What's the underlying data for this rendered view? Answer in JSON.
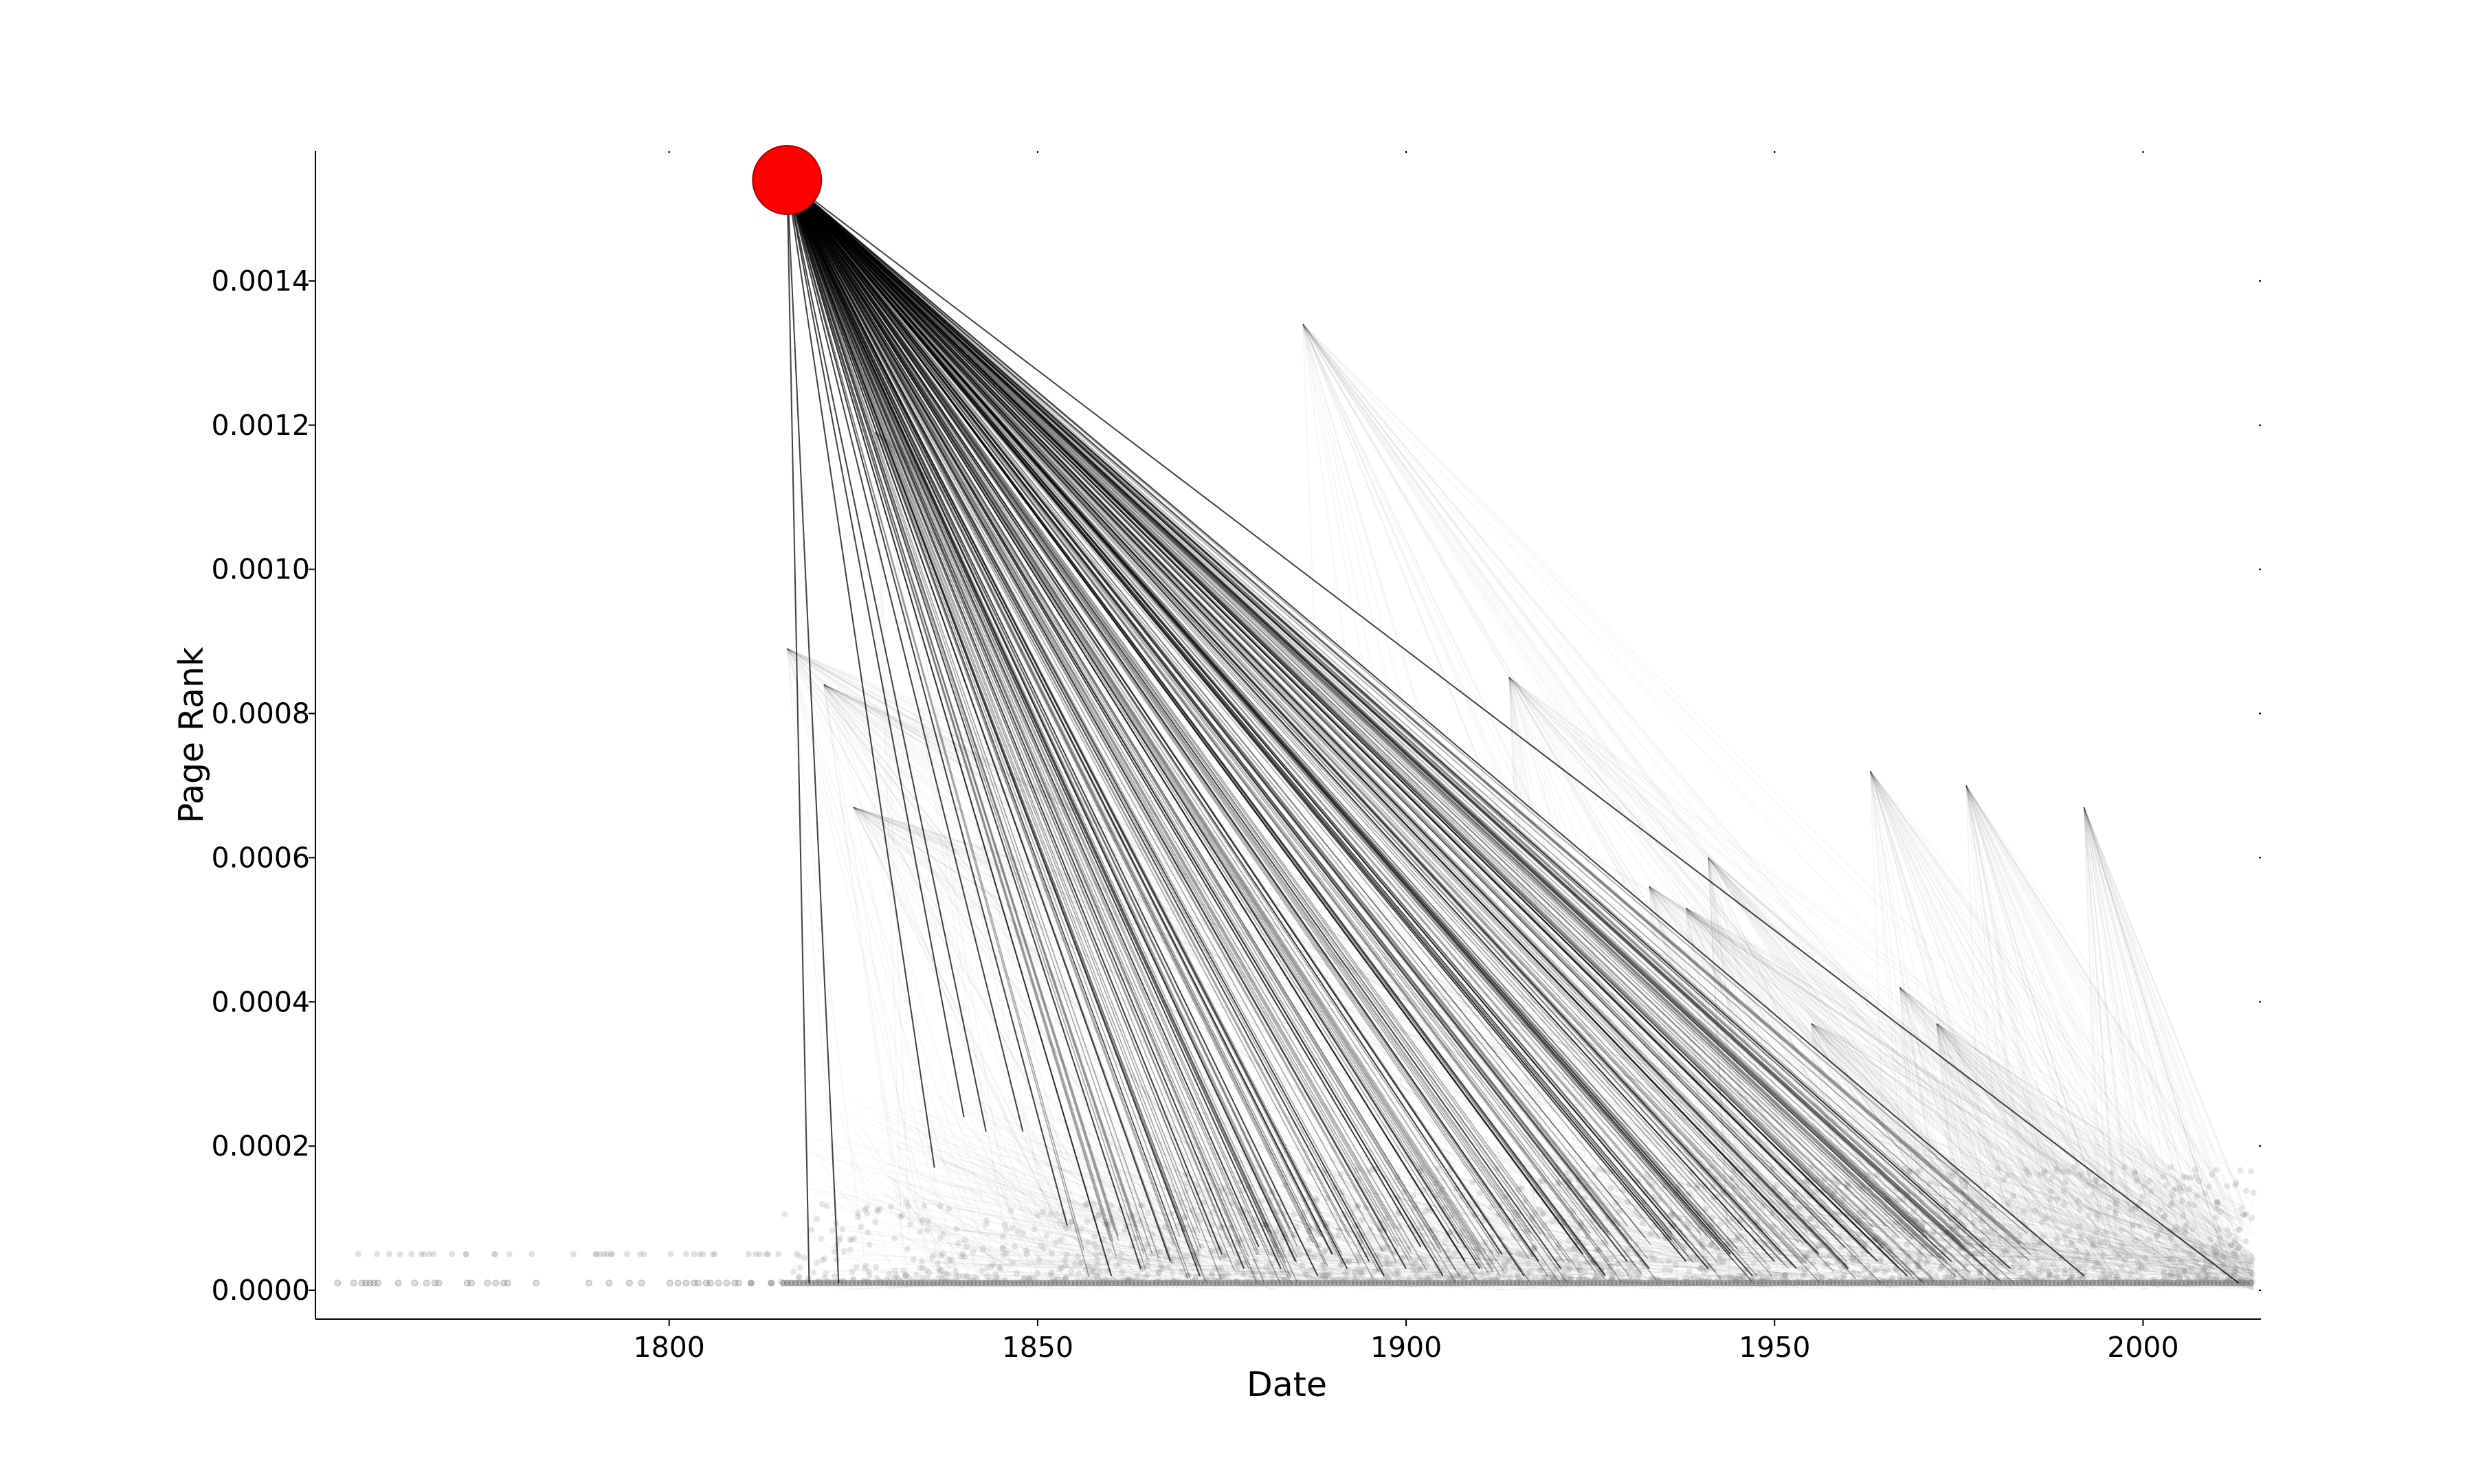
{
  "chart_data": {
    "type": "scatter",
    "xlabel": "Date",
    "ylabel": "Page Rank",
    "xlim": [
      1752,
      2016
    ],
    "ylim": [
      -4e-05,
      0.00158
    ],
    "xticks": [
      1800,
      1850,
      1900,
      1950,
      2000
    ],
    "yticks": [
      0.0,
      0.0002,
      0.0004,
      0.0006,
      0.0008,
      0.001,
      0.0012,
      0.0014
    ],
    "ytick_labels": [
      "0.0000",
      "0.0002",
      "0.0004",
      "0.0006",
      "0.0008",
      "0.0010",
      "0.0012",
      "0.0014"
    ],
    "highlight_node": {
      "x": 1816,
      "y": 0.00154,
      "color": "#ff0000"
    },
    "edges_from_highlight": [
      {
        "x": 1819,
        "y": 1e-05
      },
      {
        "x": 1823,
        "y": 1e-05
      },
      {
        "x": 1836,
        "y": 0.00017
      },
      {
        "x": 1840,
        "y": 0.00024
      },
      {
        "x": 1843,
        "y": 0.00022
      },
      {
        "x": 1848,
        "y": 0.00022
      },
      {
        "x": 1854,
        "y": 9e-05
      },
      {
        "x": 1860,
        "y": 2e-05
      },
      {
        "x": 1864,
        "y": 3e-05
      },
      {
        "x": 1868,
        "y": 4e-05
      },
      {
        "x": 1872,
        "y": 2e-05
      },
      {
        "x": 1875,
        "y": 5e-05
      },
      {
        "x": 1878,
        "y": 3e-05
      },
      {
        "x": 1880,
        "y": 6e-05
      },
      {
        "x": 1883,
        "y": 3e-05
      },
      {
        "x": 1885,
        "y": 4e-05
      },
      {
        "x": 1888,
        "y": 2e-05
      },
      {
        "x": 1890,
        "y": 5e-05
      },
      {
        "x": 1892,
        "y": 3e-05
      },
      {
        "x": 1895,
        "y": 4e-05
      },
      {
        "x": 1897,
        "y": 2e-05
      },
      {
        "x": 1900,
        "y": 3e-05
      },
      {
        "x": 1902,
        "y": 6e-05
      },
      {
        "x": 1905,
        "y": 2e-05
      },
      {
        "x": 1908,
        "y": 4e-05
      },
      {
        "x": 1910,
        "y": 3e-05
      },
      {
        "x": 1913,
        "y": 5e-05
      },
      {
        "x": 1916,
        "y": 2e-05
      },
      {
        "x": 1918,
        "y": 4e-05
      },
      {
        "x": 1921,
        "y": 3e-05
      },
      {
        "x": 1924,
        "y": 5e-05
      },
      {
        "x": 1927,
        "y": 2e-05
      },
      {
        "x": 1930,
        "y": 4e-05
      },
      {
        "x": 1933,
        "y": 3e-05
      },
      {
        "x": 1936,
        "y": 7e-05
      },
      {
        "x": 1938,
        "y": 4e-05
      },
      {
        "x": 1941,
        "y": 3e-05
      },
      {
        "x": 1944,
        "y": 5e-05
      },
      {
        "x": 1947,
        "y": 2e-05
      },
      {
        "x": 1950,
        "y": 4e-05
      },
      {
        "x": 1953,
        "y": 3e-05
      },
      {
        "x": 1956,
        "y": 5e-05
      },
      {
        "x": 1960,
        "y": 3e-05
      },
      {
        "x": 1964,
        "y": 4e-05
      },
      {
        "x": 1968,
        "y": 2e-05
      },
      {
        "x": 1974,
        "y": 4e-05
      },
      {
        "x": 1982,
        "y": 3e-05
      },
      {
        "x": 1992,
        "y": 2e-05
      },
      {
        "x": 2013,
        "y": 1e-05
      }
    ],
    "secondary_hubs": [
      {
        "x": 1886,
        "y": 0.00134
      },
      {
        "x": 1828,
        "y": 0.00119
      },
      {
        "x": 1816,
        "y": 0.00089
      },
      {
        "x": 1821,
        "y": 0.00084
      },
      {
        "x": 1914,
        "y": 0.00085
      },
      {
        "x": 1825,
        "y": 0.00067
      },
      {
        "x": 1963,
        "y": 0.00072
      },
      {
        "x": 1976,
        "y": 0.0007
      },
      {
        "x": 1992,
        "y": 0.00067
      },
      {
        "x": 1941,
        "y": 0.0006
      },
      {
        "x": 1933,
        "y": 0.00056
      },
      {
        "x": 1938,
        "y": 0.00053
      },
      {
        "x": 1967,
        "y": 0.00042
      },
      {
        "x": 1955,
        "y": 0.00037
      },
      {
        "x": 1972,
        "y": 0.00037
      }
    ]
  }
}
